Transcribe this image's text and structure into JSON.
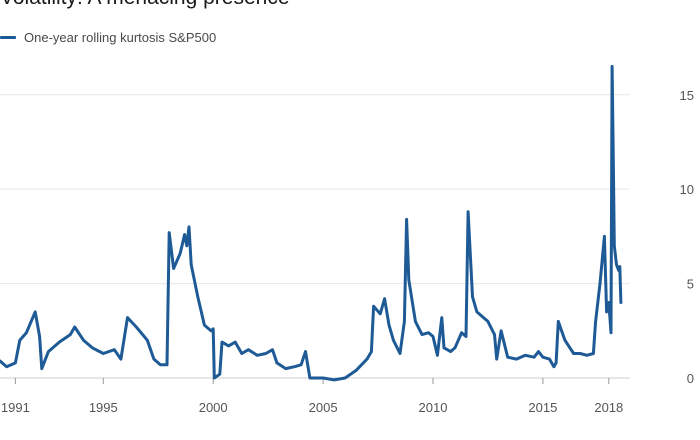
{
  "title": "Volatility: A menacing presence",
  "chart_data": {
    "type": "line",
    "title": "Volatility: A menacing presence",
    "xlabel": "",
    "ylabel": "",
    "xlim": [
      1990.3,
      2018.6
    ],
    "ylim": [
      0,
      17
    ],
    "grid": true,
    "legend_position": "top-left",
    "y_ticks": [
      0,
      5,
      10,
      15
    ],
    "x_ticks": [
      {
        "value": 1991,
        "label": "1991"
      },
      {
        "value": 1995,
        "label": "1995"
      },
      {
        "value": 2000,
        "label": "2000"
      },
      {
        "value": 2005,
        "label": "2005"
      },
      {
        "value": 2010,
        "label": "2010"
      },
      {
        "value": 2015,
        "label": "2015"
      },
      {
        "value": 2018,
        "label": "2018"
      }
    ],
    "series": [
      {
        "name": "One-year rolling kurtosis S&P500",
        "color": "#1e5a96",
        "points": [
          [
            1990.3,
            0.9
          ],
          [
            1990.6,
            0.6
          ],
          [
            1991.0,
            0.8
          ],
          [
            1991.2,
            2.0
          ],
          [
            1991.5,
            2.4
          ],
          [
            1991.9,
            3.5
          ],
          [
            1992.1,
            2.2
          ],
          [
            1992.2,
            0.5
          ],
          [
            1992.5,
            1.4
          ],
          [
            1993.0,
            1.9
          ],
          [
            1993.5,
            2.3
          ],
          [
            1993.7,
            2.7
          ],
          [
            1994.1,
            2.0
          ],
          [
            1994.5,
            1.6
          ],
          [
            1995.0,
            1.3
          ],
          [
            1995.5,
            1.5
          ],
          [
            1995.8,
            1.0
          ],
          [
            1996.1,
            3.2
          ],
          [
            1996.5,
            2.7
          ],
          [
            1997.0,
            2.0
          ],
          [
            1997.3,
            1.0
          ],
          [
            1997.6,
            0.7
          ],
          [
            1997.9,
            0.7
          ],
          [
            1998.0,
            7.7
          ],
          [
            1998.2,
            5.8
          ],
          [
            1998.5,
            6.6
          ],
          [
            1998.7,
            7.6
          ],
          [
            1998.8,
            7.0
          ],
          [
            1998.9,
            8.0
          ],
          [
            1999.0,
            6.0
          ],
          [
            1999.3,
            4.3
          ],
          [
            1999.6,
            2.8
          ],
          [
            1999.9,
            2.5
          ],
          [
            2000.0,
            2.6
          ],
          [
            2000.05,
            0.0
          ],
          [
            2000.3,
            0.2
          ],
          [
            2000.4,
            1.9
          ],
          [
            2000.7,
            1.7
          ],
          [
            2001.0,
            1.9
          ],
          [
            2001.3,
            1.3
          ],
          [
            2001.6,
            1.5
          ],
          [
            2002.0,
            1.2
          ],
          [
            2002.4,
            1.3
          ],
          [
            2002.7,
            1.5
          ],
          [
            2002.9,
            0.8
          ],
          [
            2003.3,
            0.5
          ],
          [
            2003.7,
            0.6
          ],
          [
            2004.0,
            0.7
          ],
          [
            2004.2,
            1.4
          ],
          [
            2004.4,
            0.0
          ],
          [
            2005.0,
            0.0
          ],
          [
            2005.5,
            -0.1
          ],
          [
            2006.0,
            0.0
          ],
          [
            2006.5,
            0.4
          ],
          [
            2007.0,
            1.0
          ],
          [
            2007.2,
            1.4
          ],
          [
            2007.3,
            3.8
          ],
          [
            2007.6,
            3.4
          ],
          [
            2007.8,
            4.2
          ],
          [
            2008.0,
            2.8
          ],
          [
            2008.2,
            2.0
          ],
          [
            2008.5,
            1.3
          ],
          [
            2008.7,
            3.0
          ],
          [
            2008.8,
            8.4
          ],
          [
            2008.9,
            5.2
          ],
          [
            2009.2,
            3.0
          ],
          [
            2009.5,
            2.3
          ],
          [
            2009.8,
            2.4
          ],
          [
            2010.0,
            2.2
          ],
          [
            2010.2,
            1.2
          ],
          [
            2010.4,
            3.2
          ],
          [
            2010.5,
            1.6
          ],
          [
            2010.8,
            1.4
          ],
          [
            2011.0,
            1.6
          ],
          [
            2011.3,
            2.4
          ],
          [
            2011.5,
            2.2
          ],
          [
            2011.6,
            8.8
          ],
          [
            2011.8,
            4.3
          ],
          [
            2012.0,
            3.5
          ],
          [
            2012.3,
            3.2
          ],
          [
            2012.5,
            3.0
          ],
          [
            2012.8,
            2.3
          ],
          [
            2012.9,
            1.0
          ],
          [
            2013.1,
            2.5
          ],
          [
            2013.4,
            1.1
          ],
          [
            2013.8,
            1.0
          ],
          [
            2014.2,
            1.2
          ],
          [
            2014.6,
            1.1
          ],
          [
            2014.8,
            1.4
          ],
          [
            2015.0,
            1.1
          ],
          [
            2015.3,
            1.0
          ],
          [
            2015.5,
            0.6
          ],
          [
            2015.6,
            0.8
          ],
          [
            2015.7,
            3.0
          ],
          [
            2016.0,
            2.0
          ],
          [
            2016.4,
            1.3
          ],
          [
            2016.7,
            1.3
          ],
          [
            2017.0,
            1.2
          ],
          [
            2017.3,
            1.3
          ],
          [
            2017.4,
            3.0
          ],
          [
            2017.6,
            5.0
          ],
          [
            2017.8,
            7.5
          ],
          [
            2017.9,
            3.5
          ],
          [
            2018.0,
            4.0
          ],
          [
            2018.1,
            2.4
          ],
          [
            2018.15,
            16.5
          ],
          [
            2018.2,
            12.0
          ],
          [
            2018.25,
            7.0
          ],
          [
            2018.35,
            6.0
          ],
          [
            2018.45,
            5.7
          ],
          [
            2018.5,
            5.9
          ],
          [
            2018.55,
            4.0
          ]
        ]
      }
    ]
  }
}
